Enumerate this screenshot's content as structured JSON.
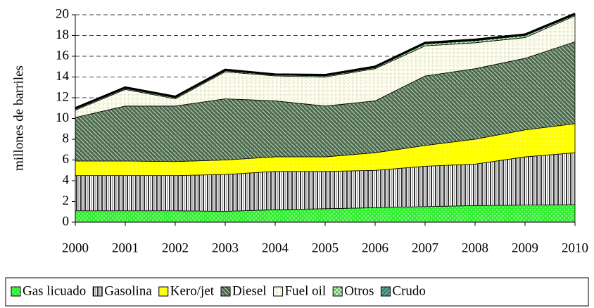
{
  "chart_data": {
    "type": "stacked_area",
    "y_label": "millones de barriles",
    "categories": [
      "2000",
      "2001",
      "2002",
      "2003",
      "2004",
      "2005",
      "2006",
      "2007",
      "2008",
      "2009",
      "2010"
    ],
    "series": [
      {
        "name": "Gas licuado",
        "color": "#33ee33",
        "values": [
          1.1,
          1.1,
          1.1,
          1.05,
          1.2,
          1.3,
          1.4,
          1.5,
          1.6,
          1.65,
          1.7
        ]
      },
      {
        "name": "Gasolina",
        "color": "#ffffff",
        "values": [
          3.4,
          3.4,
          3.4,
          3.55,
          3.7,
          3.6,
          3.6,
          3.9,
          4.0,
          4.65,
          5.0
        ]
      },
      {
        "name": "Kero/jet",
        "color": "#ffff00",
        "values": [
          1.4,
          1.4,
          1.35,
          1.4,
          1.4,
          1.4,
          1.7,
          2.0,
          2.4,
          2.6,
          2.8
        ]
      },
      {
        "name": "Diesel",
        "color": "#4d6b4d",
        "values": [
          4.2,
          5.3,
          5.35,
          5.9,
          5.4,
          4.9,
          5.0,
          6.7,
          6.8,
          6.9,
          7.9
        ]
      },
      {
        "name": "Fuel oil",
        "color": "#ffffee",
        "values": [
          0.7,
          1.6,
          0.7,
          2.6,
          2.4,
          2.8,
          3.1,
          2.9,
          2.5,
          2.0,
          2.5
        ]
      },
      {
        "name": "Otros",
        "color": "#66bb66",
        "values": [
          0.1,
          0.1,
          0.1,
          0.1,
          0.1,
          0.1,
          0.1,
          0.2,
          0.2,
          0.2,
          0.1
        ]
      },
      {
        "name": "Crudo",
        "color": "#338877",
        "values": [
          0.1,
          0.1,
          0.1,
          0.1,
          0.05,
          0.1,
          0.1,
          0.1,
          0.1,
          0.1,
          0.1
        ]
      }
    ],
    "ylim": [
      0,
      20
    ],
    "yticks": [
      0,
      2,
      4,
      6,
      8,
      10,
      12,
      14,
      16,
      18,
      20
    ],
    "grid": true
  }
}
